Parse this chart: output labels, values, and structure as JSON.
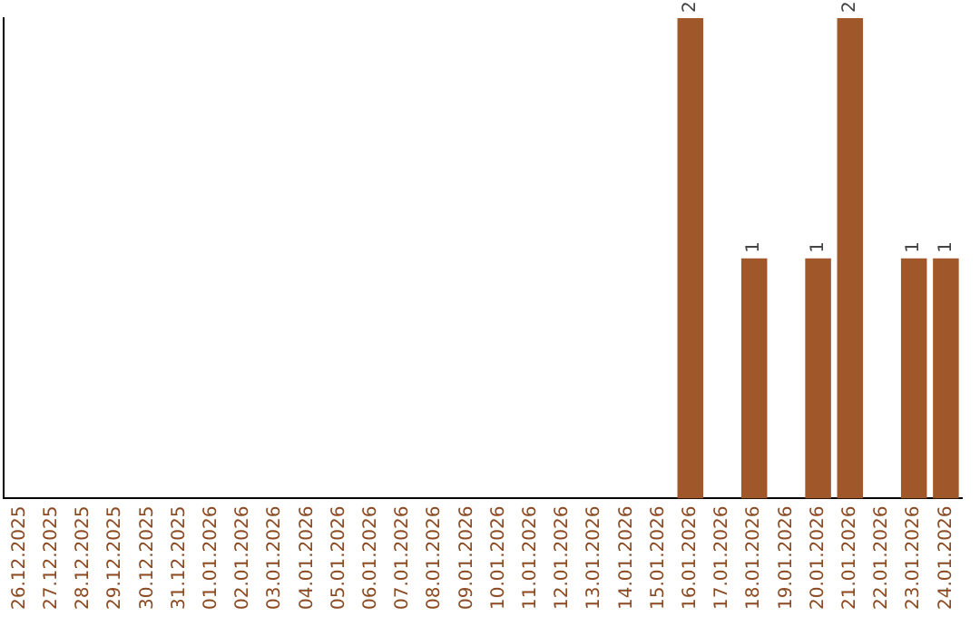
{
  "chart_data": {
    "type": "bar",
    "categories": [
      "26.12.2025",
      "27.12.2025",
      "28.12.2025",
      "29.12.2025",
      "30.12.2025",
      "31.12.2025",
      "01.01.2026",
      "02.01.2026",
      "03.01.2026",
      "04.01.2026",
      "05.01.2026",
      "06.01.2026",
      "07.01.2026",
      "08.01.2026",
      "09.01.2026",
      "10.01.2026",
      "11.01.2026",
      "12.01.2026",
      "13.01.2026",
      "14.01.2026",
      "15.01.2026",
      "16.01.2026",
      "17.01.2026",
      "18.01.2026",
      "19.01.2026",
      "20.01.2026",
      "21.01.2026",
      "22.01.2026",
      "23.01.2026",
      "24.01.2026"
    ],
    "values": [
      null,
      null,
      null,
      null,
      null,
      null,
      null,
      null,
      null,
      null,
      null,
      null,
      null,
      null,
      null,
      null,
      null,
      null,
      null,
      null,
      null,
      2,
      null,
      1,
      null,
      1,
      2,
      null,
      1,
      1
    ],
    "color": "#a0572a",
    "ylim": [
      0,
      2
    ],
    "data_labels": true,
    "grid": false,
    "legend": false,
    "tick_labels": "x"
  }
}
